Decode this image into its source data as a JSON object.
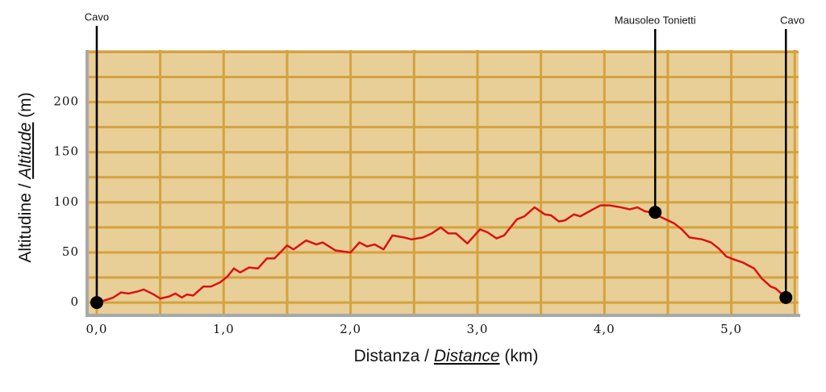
{
  "chart_data": {
    "type": "line",
    "x_label": {
      "before": "Distanza /",
      "italic": "Distance",
      "after": "(km)"
    },
    "y_label": {
      "before": "Altitudine /",
      "italic": "Altitude",
      "after": "(m)"
    },
    "x": [
      0.0,
      0.06,
      0.13,
      0.19,
      0.25,
      0.32,
      0.37,
      0.45,
      0.5,
      0.57,
      0.62,
      0.67,
      0.71,
      0.76,
      0.84,
      0.9,
      0.97,
      1.03,
      1.08,
      1.13,
      1.2,
      1.27,
      1.34,
      1.4,
      1.5,
      1.55,
      1.65,
      1.73,
      1.78,
      1.88,
      1.94,
      2.0,
      2.07,
      2.13,
      2.19,
      2.26,
      2.33,
      2.42,
      2.48,
      2.57,
      2.64,
      2.71,
      2.77,
      2.83,
      2.92,
      3.02,
      3.08,
      3.15,
      3.21,
      3.31,
      3.37,
      3.45,
      3.53,
      3.58,
      3.64,
      3.69,
      3.76,
      3.81,
      3.91,
      3.97,
      4.04,
      4.13,
      4.2,
      4.26,
      4.32,
      4.37,
      4.45,
      4.55,
      4.61,
      4.67,
      4.77,
      4.84,
      4.9,
      4.96,
      5.02,
      5.09,
      5.18,
      5.24,
      5.31,
      5.35,
      5.42
    ],
    "values": [
      0,
      2,
      5,
      10,
      9,
      11,
      13,
      8,
      4,
      6,
      9,
      5,
      8,
      7,
      16,
      16,
      20,
      26,
      34,
      30,
      35,
      34,
      44,
      44,
      57,
      53,
      62,
      58,
      60,
      52,
      51,
      50,
      60,
      56,
      58,
      53,
      67,
      65,
      63,
      65,
      69,
      75,
      69,
      69,
      59,
      73,
      70,
      64,
      67,
      83,
      86,
      95,
      88,
      87,
      81,
      82,
      88,
      86,
      93,
      97,
      97,
      95,
      93,
      95,
      91,
      90,
      85,
      79,
      73,
      65,
      63,
      60,
      54,
      46,
      43,
      40,
      34,
      24,
      16,
      14,
      6
    ],
    "color": "#dd1111",
    "xlim": [
      -0.076,
      5.53
    ],
    "ylim": [
      -12,
      252
    ],
    "xticks": [
      {
        "value": 0,
        "label": "0,0"
      },
      {
        "value": 1,
        "label": "1,0"
      },
      {
        "value": 2,
        "label": "2,0"
      },
      {
        "value": 3,
        "label": "3,0"
      },
      {
        "value": 4,
        "label": "4,0"
      },
      {
        "value": 5,
        "label": "5,0"
      }
    ],
    "yticks": [
      0,
      50,
      100,
      150,
      200
    ],
    "xgrid": [
      0,
      0.5,
      1,
      1.5,
      2,
      2.5,
      3,
      3.5,
      4,
      4.5,
      5,
      5.5
    ],
    "ygrid": [
      0,
      25,
      50,
      75,
      100,
      125,
      150,
      175,
      200,
      225,
      250
    ],
    "grid": true,
    "grid_color": "#d4a23f",
    "background": "#e8cf98",
    "markers": [
      {
        "label": "Cavo",
        "x": 0.0,
        "y": 0
      },
      {
        "label": "Mausoleo Tonietti",
        "x": 4.4,
        "y": 90
      },
      {
        "label": "Cavo",
        "x": 5.43,
        "y": 5
      }
    ]
  }
}
